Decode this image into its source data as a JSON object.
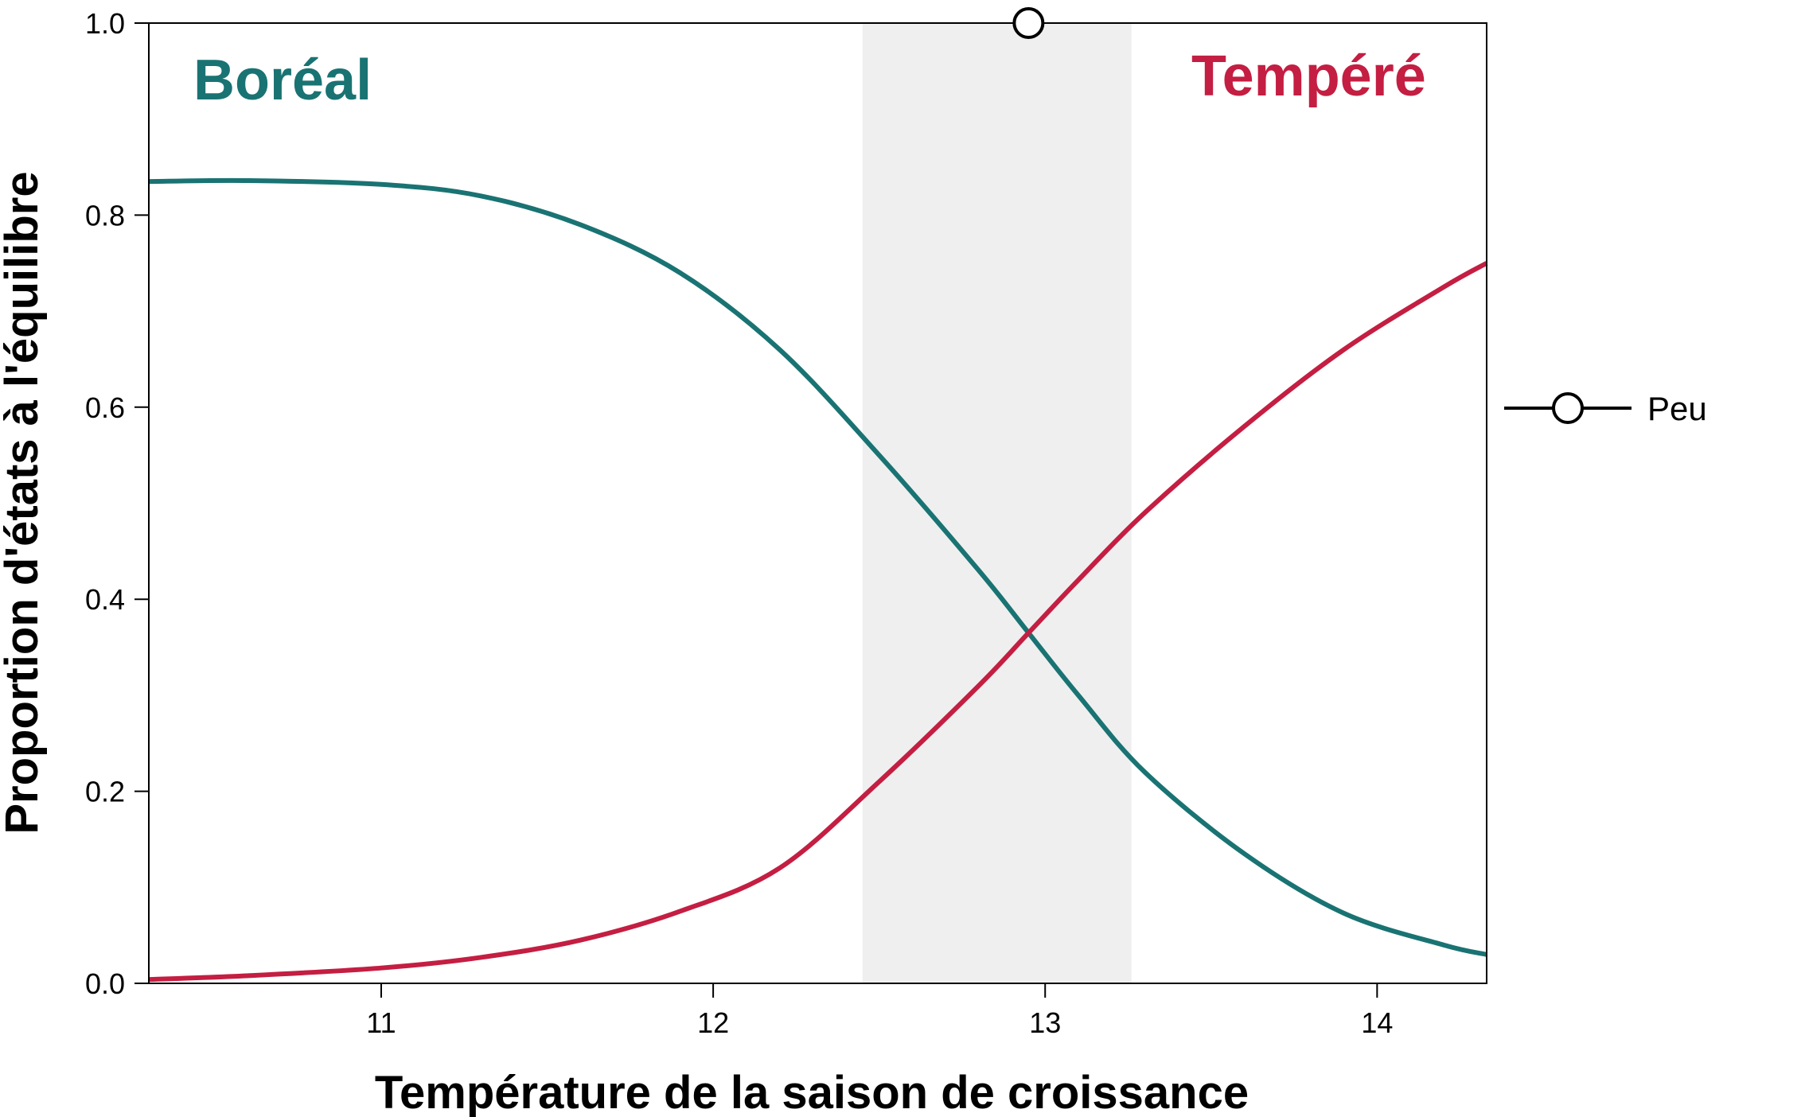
{
  "chart_data": {
    "type": "line",
    "xlabel": "Température de la saison de croissance",
    "ylabel": "Proportion d'états à l'équilibre",
    "xlim": [
      10.3,
      14.33
    ],
    "ylim": [
      0,
      1
    ],
    "xticks": [
      11,
      12,
      13,
      14
    ],
    "yticks": [
      0.0,
      0.2,
      0.4,
      0.6,
      0.8,
      1.0
    ],
    "xtick_labels": [
      "11",
      "12",
      "13",
      "14"
    ],
    "ytick_labels": [
      "0.0",
      "0.2",
      "0.4",
      "0.6",
      "0.8",
      "1.0"
    ],
    "shaded_region": {
      "x": [
        12.45,
        13.26
      ],
      "color": "#efefef"
    },
    "region_labels": [
      {
        "text": "Boréal",
        "color": "#1a7373"
      },
      {
        "text": "Tempéré",
        "color": "#c41e42"
      }
    ],
    "series": [
      {
        "color": "#1a7373",
        "x": [
          10.3,
          10.6,
          11.0,
          11.3,
          11.6,
          11.9,
          12.2,
          12.5,
          12.8,
          12.95,
          13.1,
          13.3,
          13.6,
          13.9,
          14.2,
          14.33
        ],
        "y": [
          0.835,
          0.836,
          0.832,
          0.82,
          0.79,
          0.74,
          0.66,
          0.55,
          0.43,
          0.365,
          0.3,
          0.22,
          0.135,
          0.073,
          0.04,
          0.03
        ]
      },
      {
        "color": "#c41e42",
        "x": [
          10.3,
          10.6,
          11.0,
          11.3,
          11.6,
          11.9,
          12.2,
          12.5,
          12.8,
          12.95,
          13.1,
          13.3,
          13.6,
          13.9,
          14.2,
          14.33
        ],
        "y": [
          0.004,
          0.008,
          0.016,
          0.027,
          0.045,
          0.075,
          0.12,
          0.21,
          0.31,
          0.365,
          0.42,
          0.49,
          0.58,
          0.66,
          0.725,
          0.75
        ]
      }
    ],
    "marker": {
      "x": 12.95,
      "y": 1.0,
      "shape": "open-circle"
    },
    "legend": {
      "placement": "right",
      "entries": [
        {
          "label": "Peu",
          "symbol": "line-open-circle"
        }
      ]
    }
  }
}
